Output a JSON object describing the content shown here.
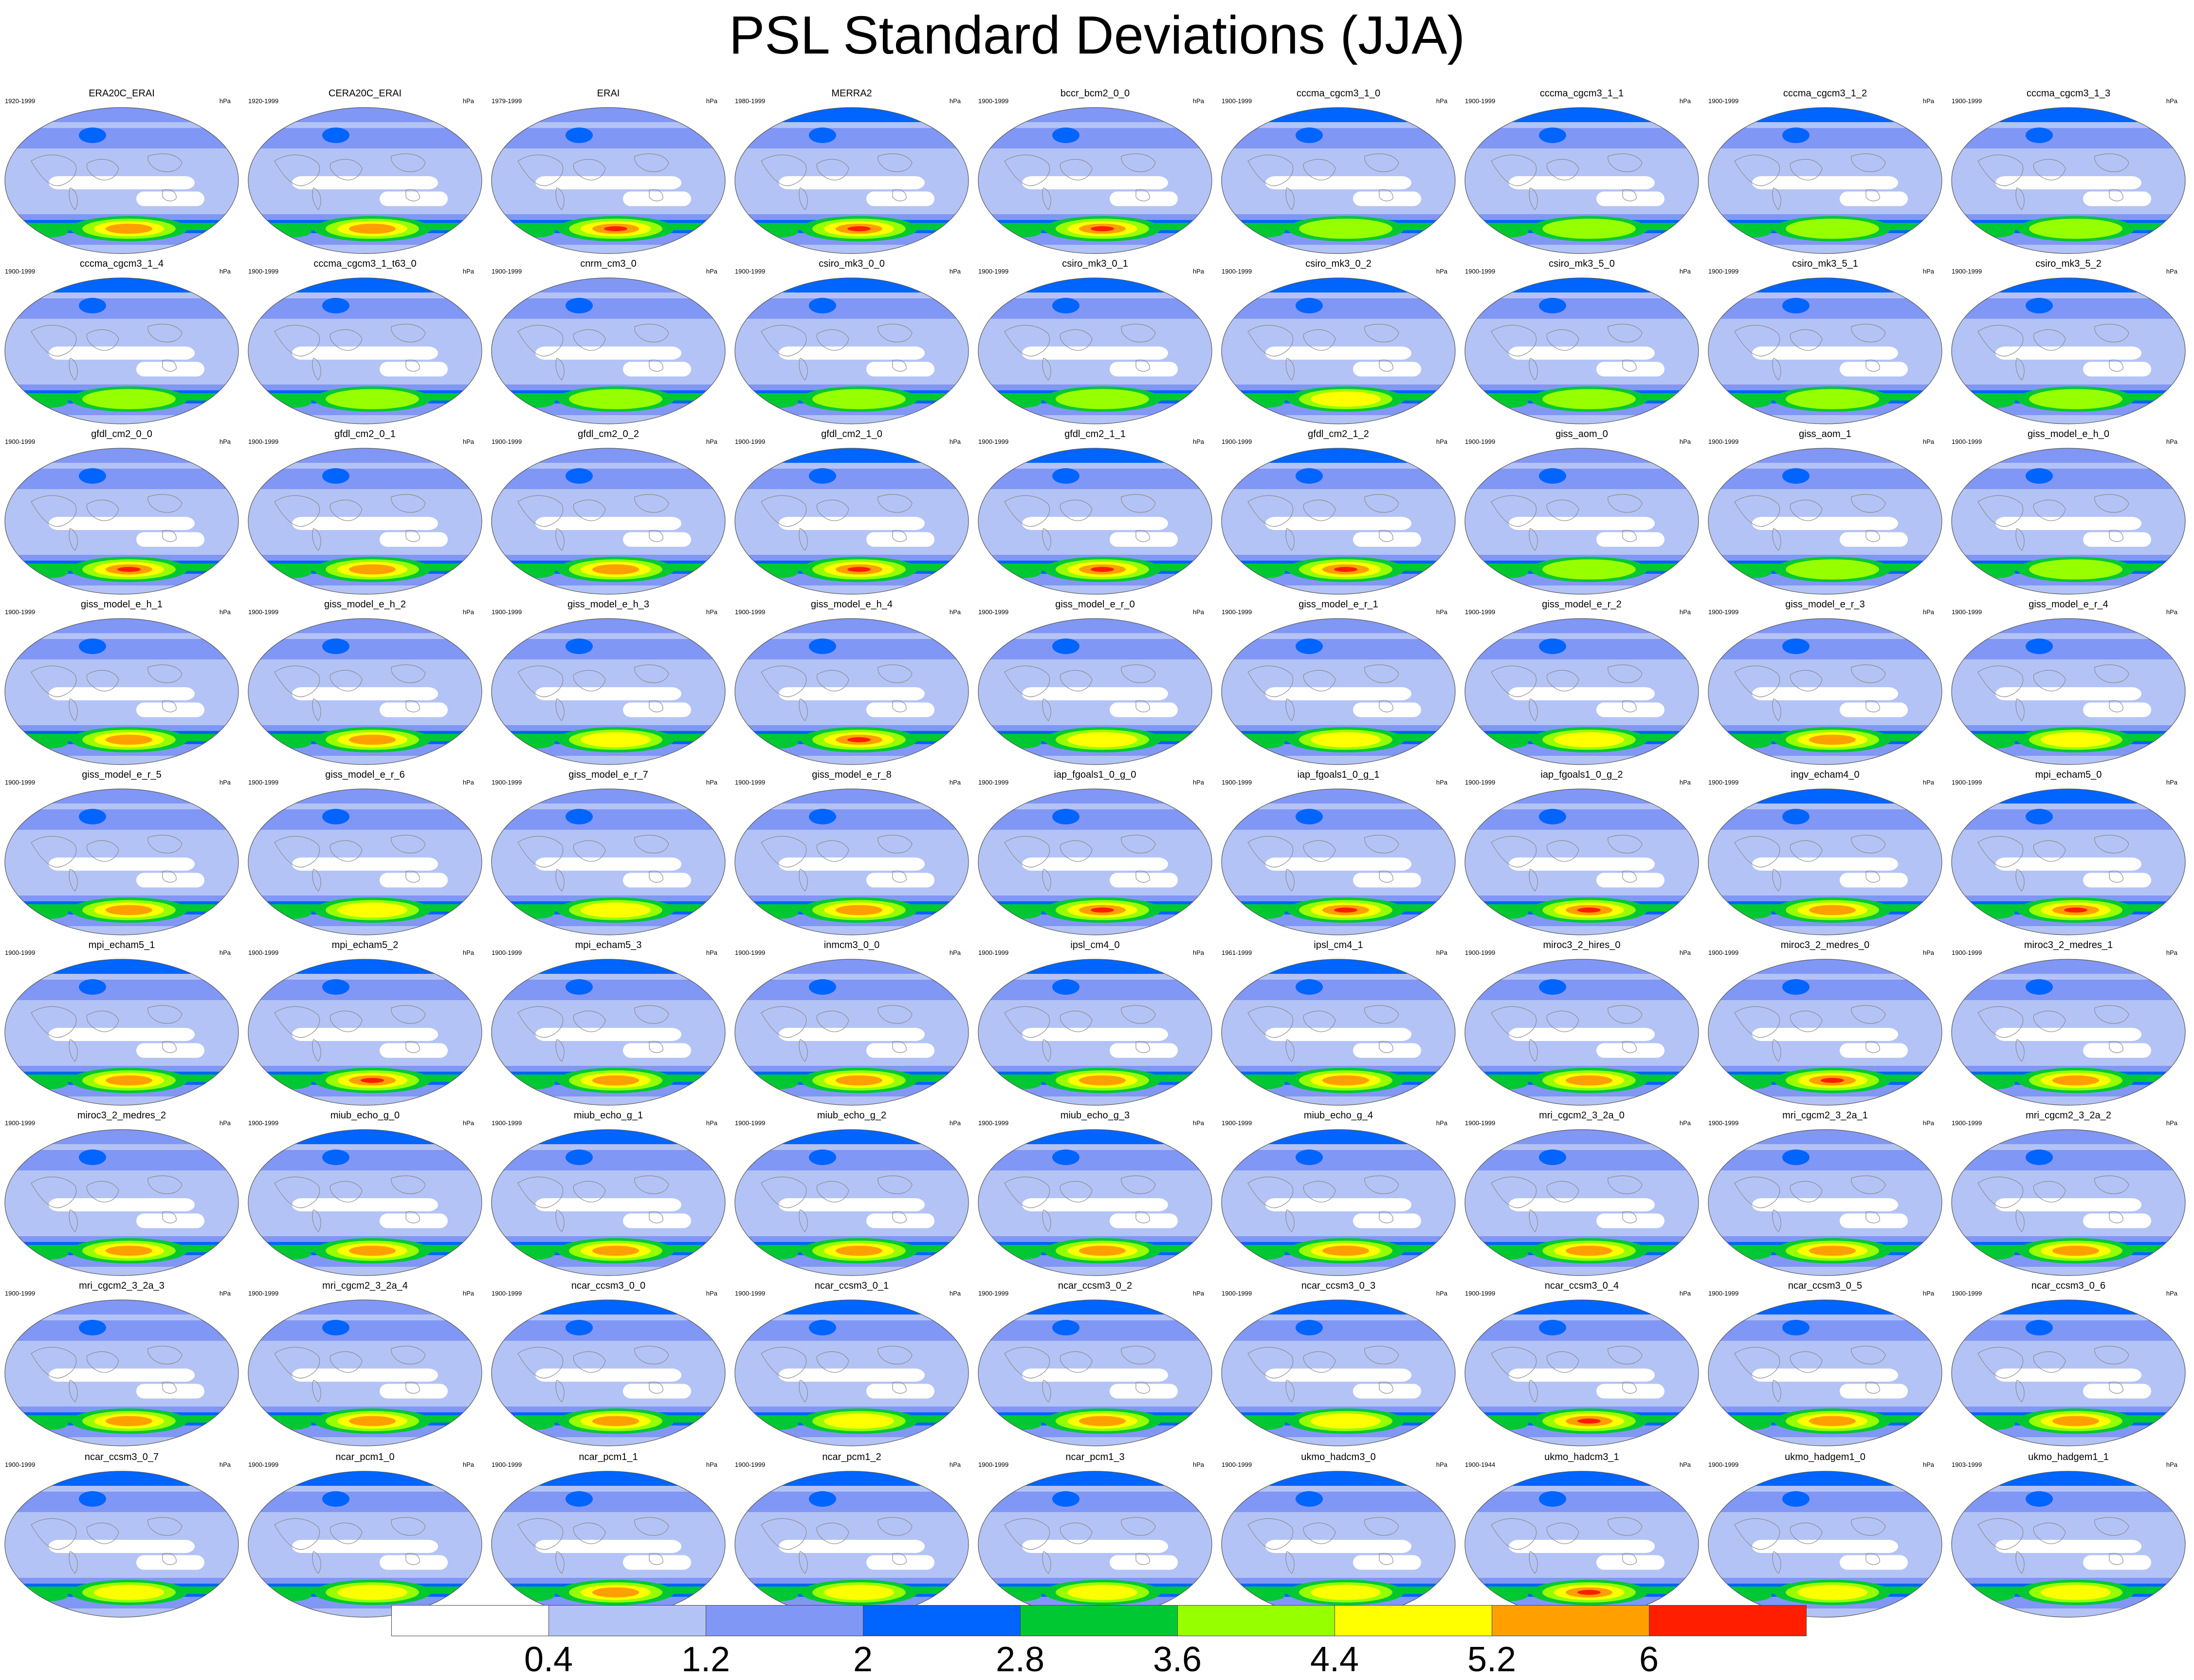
{
  "chart_data": {
    "type": "heatmap",
    "title": "PSL Standard Deviations (JJA)",
    "variable": "PSL",
    "season": "JJA",
    "units": "hPa",
    "colorbar": {
      "levels": [
        0.4,
        1.2,
        2,
        2.8,
        3.6,
        4.4,
        5.2,
        6
      ],
      "level_labels": [
        "0.4",
        "1.2",
        "2",
        "2.8",
        "3.6",
        "4.4",
        "5.2",
        "6"
      ],
      "colors": [
        "#ffffff",
        "#b4c3f5",
        "#8197f5",
        "#0064ff",
        "#00c832",
        "#96ff00",
        "#ffff00",
        "#ffa000",
        "#ff1e00"
      ]
    },
    "panels": [
      {
        "name": "ERA20C_ERAI",
        "years": "1920-1999",
        "max_level": 7,
        "north": 1
      },
      {
        "name": "CERA20C_ERAI",
        "years": "1920-1999",
        "max_level": 7,
        "north": 1
      },
      {
        "name": "ERAI",
        "years": "1979-1999",
        "max_level": 8,
        "north": 1
      },
      {
        "name": "MERRA2",
        "years": "1980-1999",
        "max_level": 8,
        "north": 2
      },
      {
        "name": "bccr_bcm2_0_0",
        "years": "1900-1999",
        "max_level": 8,
        "north": 1
      },
      {
        "name": "cccma_cgcm3_1_0",
        "years": "1900-1999",
        "max_level": 5,
        "north": 2
      },
      {
        "name": "cccma_cgcm3_1_1",
        "years": "1900-1999",
        "max_level": 5,
        "north": 2
      },
      {
        "name": "cccma_cgcm3_1_2",
        "years": "1900-1999",
        "max_level": 5,
        "north": 2
      },
      {
        "name": "cccma_cgcm3_1_3",
        "years": "1900-1999",
        "max_level": 5,
        "north": 2
      },
      {
        "name": "cccma_cgcm3_1_4",
        "years": "1900-1999",
        "max_level": 5,
        "north": 2
      },
      {
        "name": "cccma_cgcm3_1_t63_0",
        "years": "1900-1999",
        "max_level": 5,
        "north": 2
      },
      {
        "name": "cnrm_cm3_0",
        "years": "1900-1999",
        "max_level": 5,
        "north": 1
      },
      {
        "name": "csiro_mk3_0_0",
        "years": "1900-1999",
        "max_level": 5,
        "north": 2
      },
      {
        "name": "csiro_mk3_0_1",
        "years": "1900-1999",
        "max_level": 5,
        "north": 2
      },
      {
        "name": "csiro_mk3_0_2",
        "years": "1900-1999",
        "max_level": 6,
        "north": 2
      },
      {
        "name": "csiro_mk3_5_0",
        "years": "1900-1999",
        "max_level": 5,
        "north": 2
      },
      {
        "name": "csiro_mk3_5_1",
        "years": "1900-1999",
        "max_level": 5,
        "north": 2
      },
      {
        "name": "csiro_mk3_5_2",
        "years": "1900-1999",
        "max_level": 5,
        "north": 2
      },
      {
        "name": "gfdl_cm2_0_0",
        "years": "1900-1999",
        "max_level": 8,
        "north": 1
      },
      {
        "name": "gfdl_cm2_0_1",
        "years": "1900-1999",
        "max_level": 7,
        "north": 1
      },
      {
        "name": "gfdl_cm2_0_2",
        "years": "1900-1999",
        "max_level": 7,
        "north": 1
      },
      {
        "name": "gfdl_cm2_1_0",
        "years": "1900-1999",
        "max_level": 8,
        "north": 2
      },
      {
        "name": "gfdl_cm2_1_1",
        "years": "1900-1999",
        "max_level": 8,
        "north": 2
      },
      {
        "name": "gfdl_cm2_1_2",
        "years": "1900-1999",
        "max_level": 8,
        "north": 2
      },
      {
        "name": "giss_aom_0",
        "years": "1900-1999",
        "max_level": 5,
        "north": 1
      },
      {
        "name": "giss_aom_1",
        "years": "1900-1999",
        "max_level": 5,
        "north": 1
      },
      {
        "name": "giss_model_e_h_0",
        "years": "1900-1999",
        "max_level": 5,
        "north": 1
      },
      {
        "name": "giss_model_e_h_1",
        "years": "1900-1999",
        "max_level": 7,
        "north": 1
      },
      {
        "name": "giss_model_e_h_2",
        "years": "1900-1999",
        "max_level": 7,
        "north": 1
      },
      {
        "name": "giss_model_e_h_3",
        "years": "1900-1999",
        "max_level": 6,
        "north": 1
      },
      {
        "name": "giss_model_e_h_4",
        "years": "1900-1999",
        "max_level": 8,
        "north": 1
      },
      {
        "name": "giss_model_e_r_0",
        "years": "1900-1999",
        "max_level": 6,
        "north": 1
      },
      {
        "name": "giss_model_e_r_1",
        "years": "1900-1999",
        "max_level": 6,
        "north": 1
      },
      {
        "name": "giss_model_e_r_2",
        "years": "1900-1999",
        "max_level": 6,
        "north": 1
      },
      {
        "name": "giss_model_e_r_3",
        "years": "1900-1999",
        "max_level": 7,
        "north": 1
      },
      {
        "name": "giss_model_e_r_4",
        "years": "1900-1999",
        "max_level": 6,
        "north": 1
      },
      {
        "name": "giss_model_e_r_5",
        "years": "1900-1999",
        "max_level": 7,
        "north": 1
      },
      {
        "name": "giss_model_e_r_6",
        "years": "1900-1999",
        "max_level": 6,
        "north": 1
      },
      {
        "name": "giss_model_e_r_7",
        "years": "1900-1999",
        "max_level": 6,
        "north": 1
      },
      {
        "name": "giss_model_e_r_8",
        "years": "1900-1999",
        "max_level": 7,
        "north": 1
      },
      {
        "name": "iap_fgoals1_0_g_0",
        "years": "1900-1999",
        "max_level": 8,
        "north": 1
      },
      {
        "name": "iap_fgoals1_0_g_1",
        "years": "1900-1999",
        "max_level": 8,
        "north": 1
      },
      {
        "name": "iap_fgoals1_0_g_2",
        "years": "1900-1999",
        "max_level": 8,
        "north": 1
      },
      {
        "name": "ingv_echam4_0",
        "years": "1900-1999",
        "max_level": 7,
        "north": 2
      },
      {
        "name": "mpi_echam5_0",
        "years": "1900-1999",
        "max_level": 8,
        "north": 2
      },
      {
        "name": "mpi_echam5_1",
        "years": "1900-1999",
        "max_level": 7,
        "north": 2
      },
      {
        "name": "mpi_echam5_2",
        "years": "1900-1999",
        "max_level": 8,
        "north": 2
      },
      {
        "name": "mpi_echam5_3",
        "years": "1900-1999",
        "max_level": 7,
        "north": 2
      },
      {
        "name": "inmcm3_0_0",
        "years": "1900-1999",
        "max_level": 7,
        "north": 1
      },
      {
        "name": "ipsl_cm4_0",
        "years": "1900-1999",
        "max_level": 7,
        "north": 2
      },
      {
        "name": "ipsl_cm4_1",
        "years": "1961-1999",
        "max_level": 7,
        "north": 2
      },
      {
        "name": "miroc3_2_hires_0",
        "years": "1900-1999",
        "max_level": 7,
        "north": 1
      },
      {
        "name": "miroc3_2_medres_0",
        "years": "1900-1999",
        "max_level": 8,
        "north": 1
      },
      {
        "name": "miroc3_2_medres_1",
        "years": "1900-1999",
        "max_level": 7,
        "north": 1
      },
      {
        "name": "miroc3_2_medres_2",
        "years": "1900-1999",
        "max_level": 7,
        "north": 1
      },
      {
        "name": "miub_echo_g_0",
        "years": "1900-1999",
        "max_level": 7,
        "north": 2
      },
      {
        "name": "miub_echo_g_1",
        "years": "1900-1999",
        "max_level": 7,
        "north": 2
      },
      {
        "name": "miub_echo_g_2",
        "years": "1900-1999",
        "max_level": 7,
        "north": 2
      },
      {
        "name": "miub_echo_g_3",
        "years": "1900-1999",
        "max_level": 7,
        "north": 2
      },
      {
        "name": "miub_echo_g_4",
        "years": "1900-1999",
        "max_level": 7,
        "north": 2
      },
      {
        "name": "mri_cgcm2_3_2a_0",
        "years": "1900-1999",
        "max_level": 7,
        "north": 1
      },
      {
        "name": "mri_cgcm2_3_2a_1",
        "years": "1900-1999",
        "max_level": 7,
        "north": 1
      },
      {
        "name": "mri_cgcm2_3_2a_2",
        "years": "1900-1999",
        "max_level": 7,
        "north": 1
      },
      {
        "name": "mri_cgcm2_3_2a_3",
        "years": "1900-1999",
        "max_level": 7,
        "north": 1
      },
      {
        "name": "mri_cgcm2_3_2a_4",
        "years": "1900-1999",
        "max_level": 7,
        "north": 1
      },
      {
        "name": "ncar_ccsm3_0_0",
        "years": "1900-1999",
        "max_level": 7,
        "north": 2
      },
      {
        "name": "ncar_ccsm3_0_1",
        "years": "1900-1999",
        "max_level": 6,
        "north": 2
      },
      {
        "name": "ncar_ccsm3_0_2",
        "years": "1900-1999",
        "max_level": 7,
        "north": 2
      },
      {
        "name": "ncar_ccsm3_0_3",
        "years": "1900-1999",
        "max_level": 6,
        "north": 2
      },
      {
        "name": "ncar_ccsm3_0_4",
        "years": "1900-1999",
        "max_level": 8,
        "north": 2
      },
      {
        "name": "ncar_ccsm3_0_5",
        "years": "1900-1999",
        "max_level": 7,
        "north": 2
      },
      {
        "name": "ncar_ccsm3_0_6",
        "years": "1900-1999",
        "max_level": 7,
        "north": 2
      },
      {
        "name": "ncar_ccsm3_0_7",
        "years": "1900-1999",
        "max_level": 6,
        "north": 2
      },
      {
        "name": "ncar_pcm1_0",
        "years": "1900-1999",
        "max_level": 6,
        "north": 2
      },
      {
        "name": "ncar_pcm1_1",
        "years": "1900-1999",
        "max_level": 7,
        "north": 2
      },
      {
        "name": "ncar_pcm1_2",
        "years": "1900-1999",
        "max_level": 6,
        "north": 2
      },
      {
        "name": "ncar_pcm1_3",
        "years": "1900-1999",
        "max_level": 6,
        "north": 2
      },
      {
        "name": "ukmo_hadcm3_0",
        "years": "1900-1999",
        "max_level": 6,
        "north": 2
      },
      {
        "name": "ukmo_hadcm3_1",
        "years": "1900-1944",
        "max_level": 8,
        "north": 2
      },
      {
        "name": "ukmo_hadgem1_0",
        "years": "1900-1999",
        "max_level": 6,
        "north": 2
      },
      {
        "name": "ukmo_hadgem1_1",
        "years": "1903-1999",
        "max_level": 6,
        "north": 2
      }
    ]
  }
}
